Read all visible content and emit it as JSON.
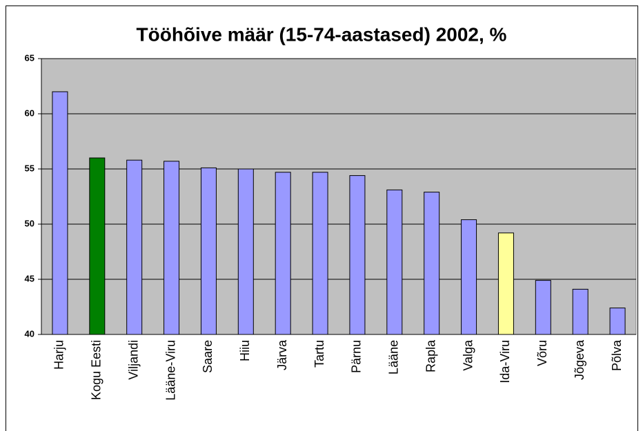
{
  "chart_data": {
    "type": "bar",
    "title": "Tööhõive määr (15-74-aastased) 2002, %",
    "categories": [
      "Harju",
      "Kogu Eesti",
      "Viljandi",
      "Lääne-Viru",
      "Saare",
      "Hiiu",
      "Järva",
      "Tartu",
      "Pärnu",
      "Lääne",
      "Rapla",
      "Valga",
      "Ida-Viru",
      "Võru",
      "Jõgeva",
      "Põlva"
    ],
    "values": [
      62.0,
      56.0,
      55.8,
      55.7,
      55.1,
      55.0,
      54.7,
      54.7,
      54.4,
      53.1,
      52.9,
      50.4,
      49.2,
      44.9,
      44.1,
      42.4
    ],
    "colors": [
      "#9999ff",
      "#008000",
      "#9999ff",
      "#9999ff",
      "#9999ff",
      "#9999ff",
      "#9999ff",
      "#9999ff",
      "#9999ff",
      "#9999ff",
      "#9999ff",
      "#9999ff",
      "#ffff99",
      "#9999ff",
      "#9999ff",
      "#9999ff"
    ],
    "ylim": [
      40,
      65
    ],
    "yticks": [
      40,
      45,
      50,
      55,
      60,
      65
    ],
    "grid": true
  }
}
